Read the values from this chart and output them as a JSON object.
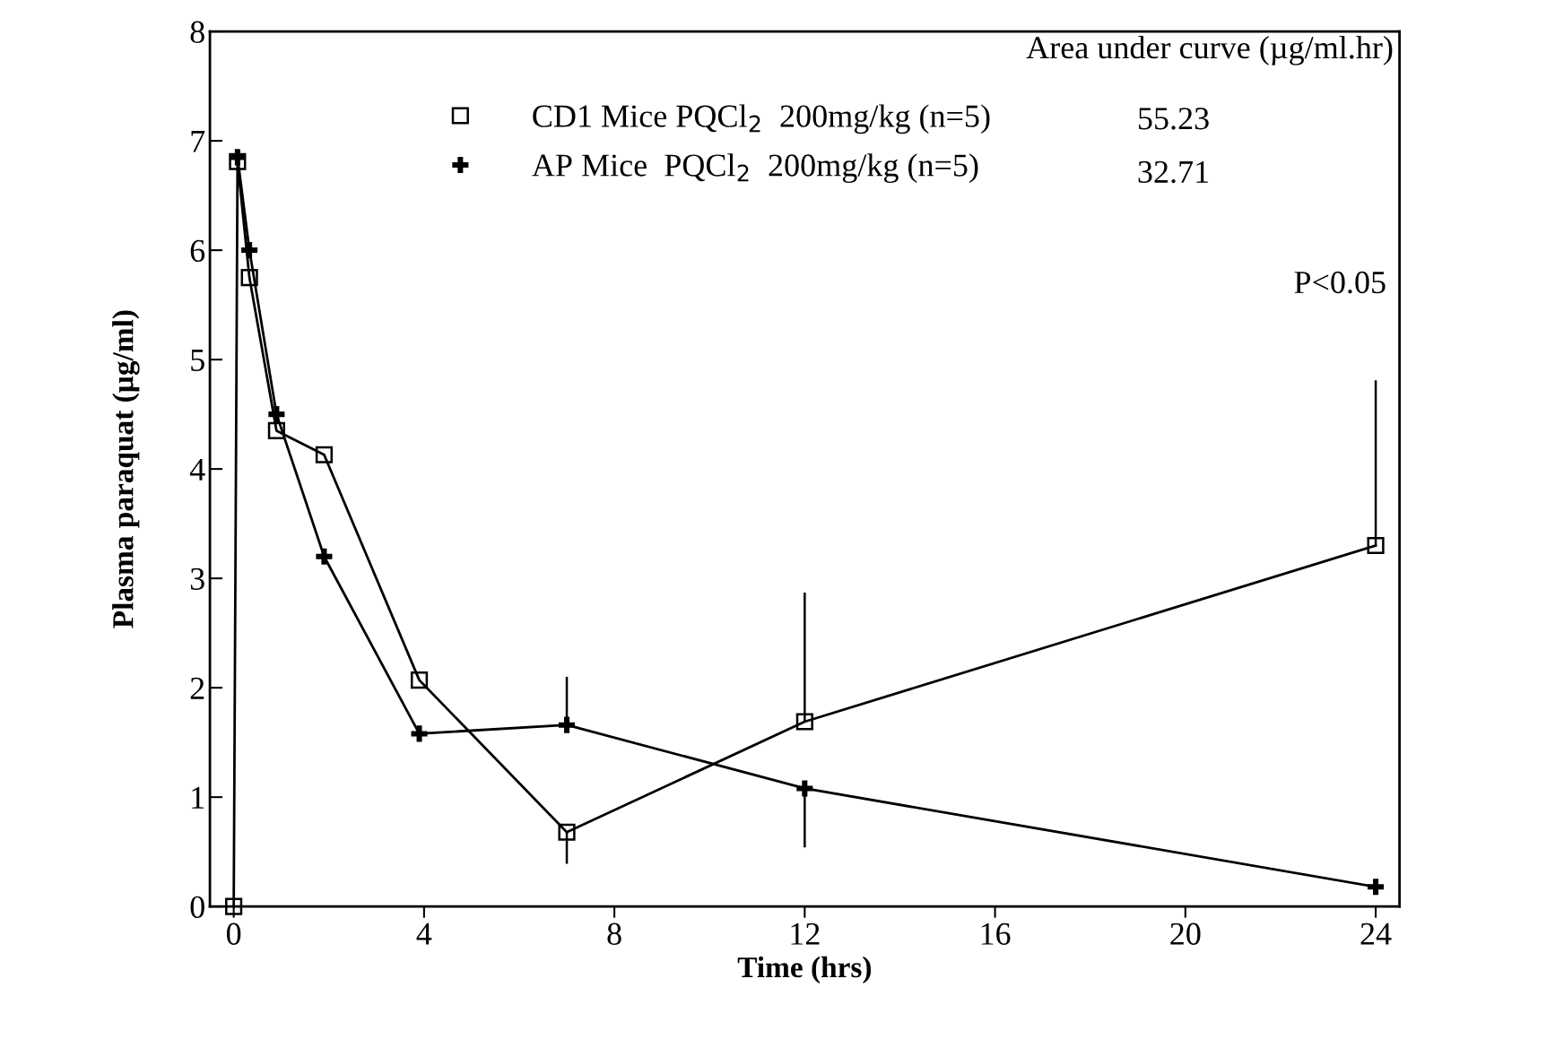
{
  "chart_data": {
    "type": "line",
    "xlabel": "Time (hrs)",
    "ylabel": "Plasma paraquat (µg/ml)",
    "xlim": [
      -0.5,
      24.5
    ],
    "ylim": [
      0,
      8
    ],
    "xticks": [
      0,
      4,
      8,
      12,
      16,
      20,
      24
    ],
    "yticks": [
      0,
      1,
      2,
      3,
      4,
      5,
      6,
      7,
      8
    ],
    "grid": false,
    "legend": "top",
    "line_style": "solid",
    "series": [
      {
        "name": "CD1 Mice PQCl$_{2}$  200mg/kg (n=5)",
        "color": "#000000",
        "marker": "square",
        "x": [
          0,
          0.08,
          0.33,
          0.9,
          1.9,
          3.9,
          7,
          12,
          24
        ],
        "values": [
          0,
          6.81,
          5.75,
          4.35,
          4.13,
          2.07,
          0.68,
          1.69,
          3.3
        ],
        "errors": [
          null,
          null,
          null,
          null,
          null,
          null,
          [
            0.39,
            0.68
          ],
          [
            1.69,
            2.87
          ],
          [
            3.3,
            4.81
          ]
        ]
      },
      {
        "name": "AP Mice  PQCl$_{2}$  200mg/kg (n=5)",
        "color": "#000000",
        "marker": "cross",
        "x": [
          0.08,
          0.33,
          0.9,
          1.9,
          3.9,
          7,
          12,
          24
        ],
        "values": [
          6.85,
          6.0,
          4.5,
          3.2,
          1.58,
          1.66,
          1.08,
          0.18
        ],
        "errors": [
          null,
          null,
          null,
          null,
          null,
          [
            1.66,
            2.1
          ],
          [
            0.54,
            1.08
          ],
          null
        ]
      }
    ],
    "annotations": [
      "Area under curve (µg/ml.hr)",
      "55.23",
      "32.71",
      "P<0.05"
    ]
  }
}
